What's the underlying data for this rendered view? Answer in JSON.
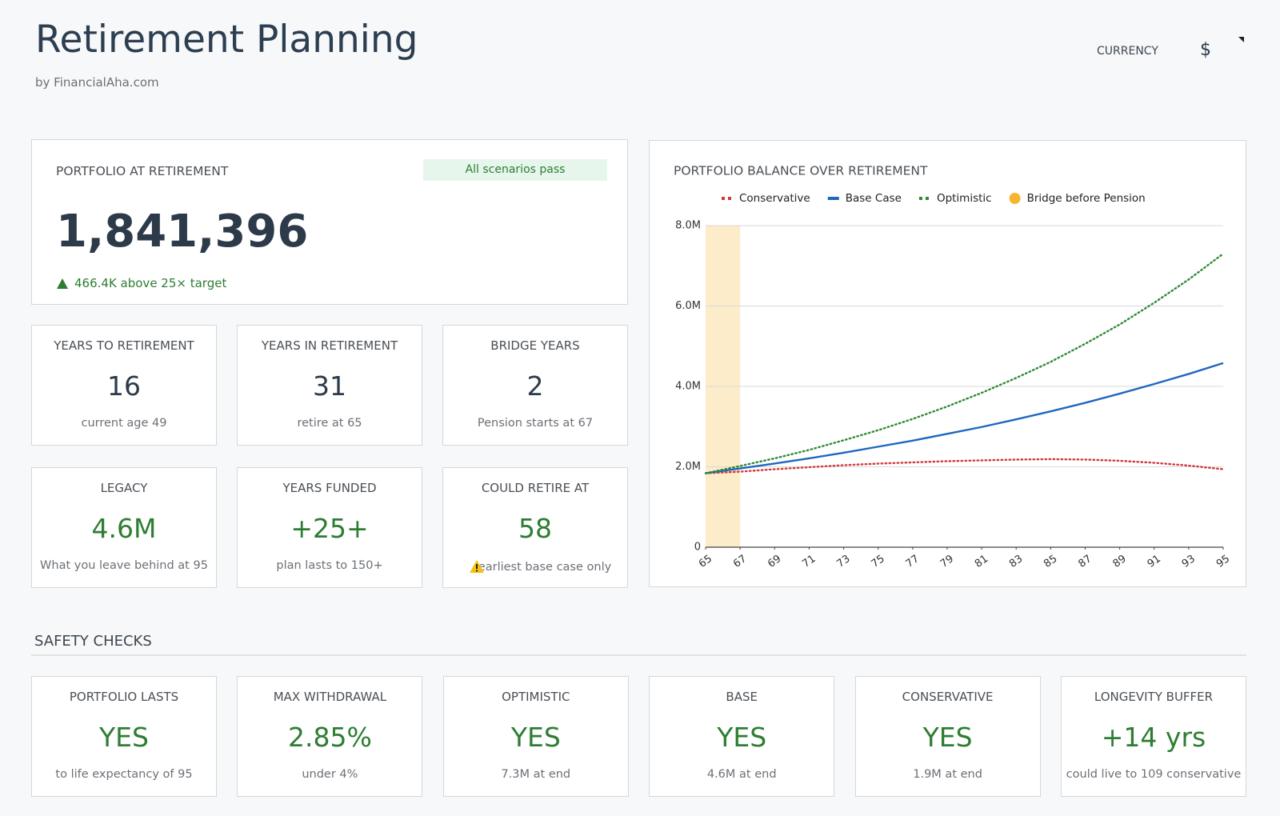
{
  "header": {
    "title": "Retirement Planning",
    "subtitle": "by FinancialAha.com",
    "currency_label": "CURRENCY",
    "currency": "$"
  },
  "portfolio": {
    "label": "PORTFOLIO AT RETIREMENT",
    "badge": "All scenarios pass",
    "value": "1,841,396",
    "note": "466.4K above 25× target"
  },
  "cards": [
    {
      "label": "YEARS TO RETIREMENT",
      "value": "16",
      "note": "current age 49"
    },
    {
      "label": "YEARS IN RETIREMENT",
      "value": "31",
      "note": "retire at 65"
    },
    {
      "label": "BRIDGE YEARS",
      "value": "2",
      "note": "Pension starts at 67"
    },
    {
      "label": "LEGACY",
      "value": "4.6M",
      "note": "What you leave behind at 95"
    },
    {
      "label": "YEARS FUNDED",
      "value": "+25+",
      "note": "plan lasts to 150+"
    },
    {
      "label": "COULD RETIRE AT",
      "value": "58",
      "note": "earliest base case only"
    }
  ],
  "safety": {
    "title": "SAFETY CHECKS",
    "cards": [
      {
        "label": "PORTFOLIO LASTS",
        "value": "YES",
        "note": "to life expectancy of 95"
      },
      {
        "label": "MAX WITHDRAWAL",
        "value": "2.85%",
        "note": "under 4%"
      },
      {
        "label": "OPTIMISTIC",
        "value": "YES",
        "note": "7.3M at end"
      },
      {
        "label": "BASE",
        "value": "YES",
        "note": "4.6M at end"
      },
      {
        "label": "CONSERVATIVE",
        "value": "YES",
        "note": "1.9M at end"
      },
      {
        "label": "LONGEVITY BUFFER",
        "value": "+14 yrs",
        "note": "could live to 109 conservative"
      }
    ]
  },
  "chart_data": {
    "type": "line",
    "title": "PORTFOLIO BALANCE OVER RETIREMENT",
    "x": [
      65,
      67,
      69,
      71,
      73,
      75,
      77,
      79,
      81,
      83,
      85,
      87,
      89,
      91,
      93,
      95
    ],
    "xlim": [
      65,
      95
    ],
    "xticks": [
      65,
      67,
      69,
      71,
      73,
      75,
      77,
      79,
      81,
      83,
      85,
      87,
      89,
      91,
      93,
      95
    ],
    "ylim": [
      0,
      8000000
    ],
    "yticks": [
      0,
      {
        "value": 2000000,
        "label": "2.0M"
      },
      {
        "value": 4000000,
        "label": "4.0M"
      },
      {
        "value": 6000000,
        "label": "6.0M"
      },
      {
        "value": 8000000,
        "label": "8.0M"
      }
    ],
    "grid": true,
    "series": [
      {
        "name": "Conservative",
        "color": "#d0393b",
        "dashed": true,
        "values": [
          1840000,
          1880000,
          1940000,
          1990000,
          2040000,
          2080000,
          2110000,
          2140000,
          2160000,
          2180000,
          2190000,
          2180000,
          2150000,
          2100000,
          2030000,
          1940000
        ]
      },
      {
        "name": "Base Case",
        "color": "#1f66c1",
        "dashed": false,
        "values": [
          1840000,
          1960000,
          2080000,
          2210000,
          2350000,
          2500000,
          2650000,
          2820000,
          2990000,
          3180000,
          3380000,
          3590000,
          3820000,
          4060000,
          4310000,
          4580000
        ]
      },
      {
        "name": "Optimistic",
        "color": "#2e8b34",
        "dashed": true,
        "values": [
          1840000,
          2020000,
          2210000,
          2420000,
          2660000,
          2910000,
          3190000,
          3500000,
          3840000,
          4210000,
          4610000,
          5060000,
          5540000,
          6080000,
          6660000,
          7300000
        ]
      }
    ],
    "band": {
      "name": "Bridge before Pension",
      "color": "#f7b52c",
      "xrange": [
        65,
        67
      ]
    }
  }
}
